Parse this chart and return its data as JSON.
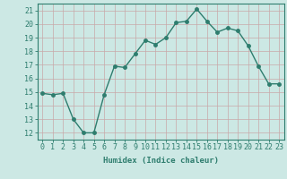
{
  "x": [
    0,
    1,
    2,
    3,
    4,
    5,
    6,
    7,
    8,
    9,
    10,
    11,
    12,
    13,
    14,
    15,
    16,
    17,
    18,
    19,
    20,
    21,
    22,
    23
  ],
  "y": [
    14.9,
    14.8,
    14.9,
    13.0,
    12.0,
    12.0,
    14.8,
    16.9,
    16.8,
    17.8,
    18.8,
    18.5,
    19.0,
    20.1,
    20.2,
    21.1,
    20.2,
    19.4,
    19.7,
    19.5,
    18.4,
    16.9,
    15.6,
    15.6
  ],
  "line_color": "#2e7d6e",
  "bg_color": "#cce8e4",
  "grid_color": "#b8d8d4",
  "xlabel": "Humidex (Indice chaleur)",
  "ylabel_ticks": [
    12,
    13,
    14,
    15,
    16,
    17,
    18,
    19,
    20,
    21
  ],
  "ylim": [
    11.5,
    21.5
  ],
  "xlim": [
    -0.5,
    23.5
  ],
  "marker": "o",
  "marker_size": 2.5,
  "linewidth": 1.0,
  "xlabel_fontsize": 6.5,
  "tick_fontsize": 6.0,
  "tick_color": "#2e7d6e",
  "axis_color": "#2e7d6e"
}
